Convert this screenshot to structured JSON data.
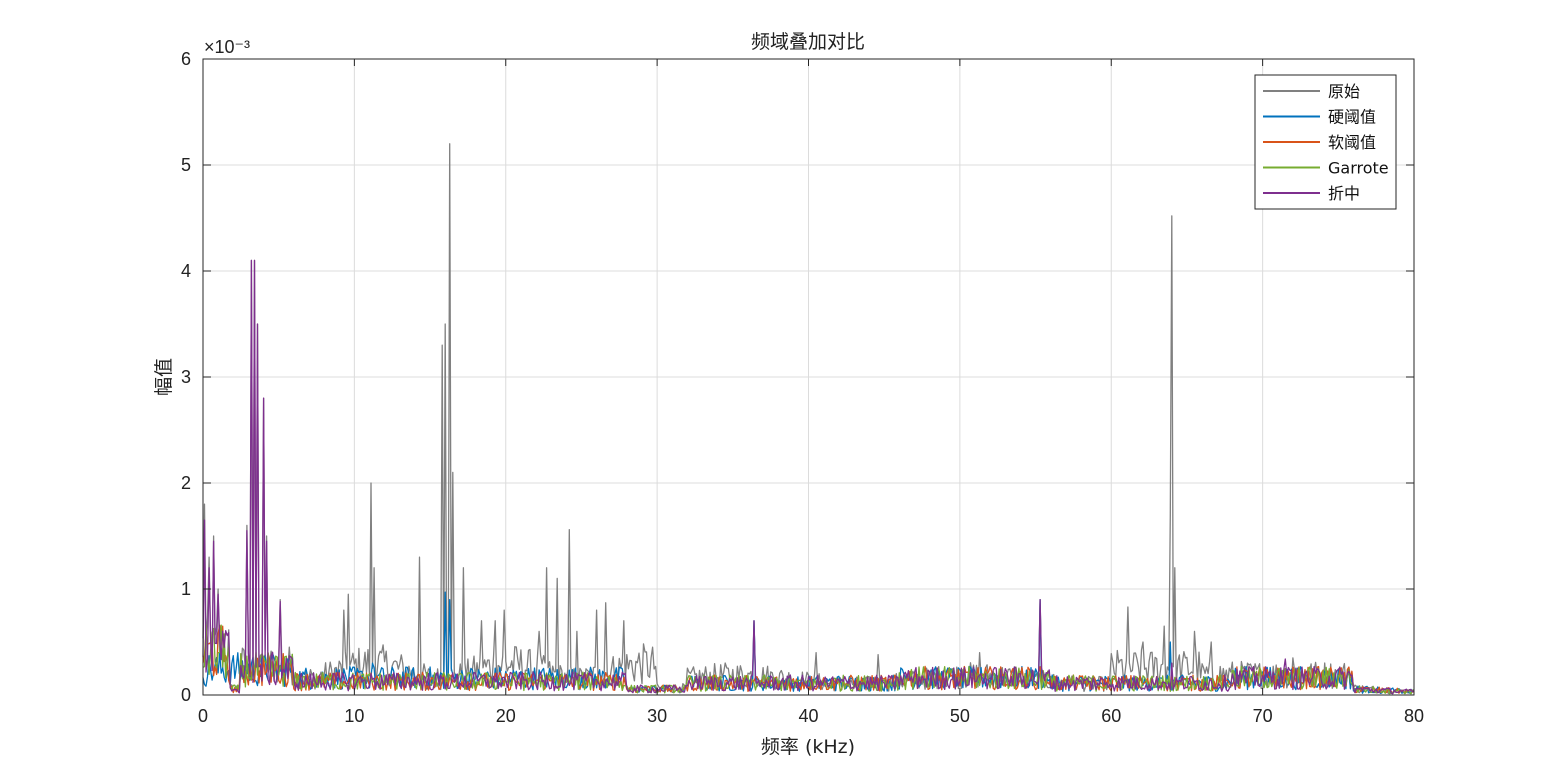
{
  "chart_data": {
    "type": "line",
    "title": "频域叠加对比",
    "xlabel": "频率 (kHz)",
    "ylabel": "幅值",
    "x_range": [
      0,
      80
    ],
    "y_range": [
      0,
      0.006
    ],
    "y_exponent_label": "×10⁻³",
    "x_ticks": [
      0,
      10,
      20,
      30,
      40,
      50,
      60,
      70,
      80
    ],
    "y_ticks": [
      {
        "value": 0,
        "label": "0"
      },
      {
        "value": 0.001,
        "label": "1"
      },
      {
        "value": 0.002,
        "label": "2"
      },
      {
        "value": 0.003,
        "label": "3"
      },
      {
        "value": 0.004,
        "label": "4"
      },
      {
        "value": 0.005,
        "label": "5"
      },
      {
        "value": 0.006,
        "label": "6"
      }
    ],
    "grid": true,
    "legend_position": "top-right",
    "series": [
      {
        "name": "原始",
        "color": "#808080",
        "peaks": [
          [
            0.1,
            1.8
          ],
          [
            0.4,
            1.3
          ],
          [
            0.7,
            1.5
          ],
          [
            1.0,
            1.0
          ],
          [
            1.4,
            0.5
          ],
          [
            2.9,
            1.6
          ],
          [
            3.2,
            4.1
          ],
          [
            3.4,
            4.1
          ],
          [
            3.6,
            3.5
          ],
          [
            4.0,
            2.8
          ],
          [
            4.2,
            1.5
          ],
          [
            5.1,
            0.9
          ],
          [
            9.3,
            0.8
          ],
          [
            9.6,
            0.95
          ],
          [
            11.1,
            2.0
          ],
          [
            11.3,
            1.2
          ],
          [
            14.3,
            1.3
          ],
          [
            15.8,
            3.3
          ],
          [
            16.0,
            3.5
          ],
          [
            16.3,
            5.2
          ],
          [
            16.5,
            2.1
          ],
          [
            17.2,
            1.2
          ],
          [
            18.4,
            0.7
          ],
          [
            19.3,
            0.7
          ],
          [
            19.9,
            0.8
          ],
          [
            22.2,
            0.6
          ],
          [
            22.7,
            1.2
          ],
          [
            23.4,
            1.1
          ],
          [
            24.2,
            1.56
          ],
          [
            24.7,
            0.6
          ],
          [
            26.0,
            0.8
          ],
          [
            26.6,
            0.87
          ],
          [
            27.8,
            0.7
          ],
          [
            36.4,
            0.7
          ],
          [
            40.5,
            0.4
          ],
          [
            44.6,
            0.38
          ],
          [
            51.3,
            0.4
          ],
          [
            55.3,
            0.9
          ],
          [
            61.1,
            0.83
          ],
          [
            62.1,
            0.5
          ],
          [
            63.5,
            0.65
          ],
          [
            63.9,
            1.7
          ],
          [
            64.0,
            4.52
          ],
          [
            64.2,
            1.2
          ],
          [
            65.5,
            0.6
          ],
          [
            66.6,
            0.5
          ],
          [
            72.0,
            0.35
          ]
        ]
      },
      {
        "name": "硬阈值",
        "color": "#0072BD",
        "peaks": [
          [
            16.0,
            0.97
          ],
          [
            16.3,
            0.9
          ],
          [
            11.2,
            0.3
          ],
          [
            36.4,
            0.7
          ],
          [
            55.3,
            0.9
          ],
          [
            63.9,
            0.5
          ]
        ]
      },
      {
        "name": "软阈值",
        "color": "#D95319",
        "peaks": []
      },
      {
        "name": "Garrote",
        "color": "#77AC30",
        "peaks": []
      },
      {
        "name": "折中",
        "color": "#7E2F8E",
        "peaks": [
          [
            0.1,
            1.65
          ],
          [
            0.4,
            1.2
          ],
          [
            0.7,
            1.45
          ],
          [
            1.0,
            0.95
          ],
          [
            1.4,
            0.45
          ],
          [
            2.9,
            1.55
          ],
          [
            3.2,
            4.1
          ],
          [
            3.4,
            4.1
          ],
          [
            3.6,
            3.5
          ],
          [
            4.0,
            2.8
          ],
          [
            4.2,
            1.45
          ],
          [
            5.1,
            0.88
          ],
          [
            36.4,
            0.7
          ],
          [
            55.3,
            0.9
          ],
          [
            64.0,
            0.3
          ],
          [
            71.5,
            0.34
          ]
        ]
      }
    ]
  }
}
